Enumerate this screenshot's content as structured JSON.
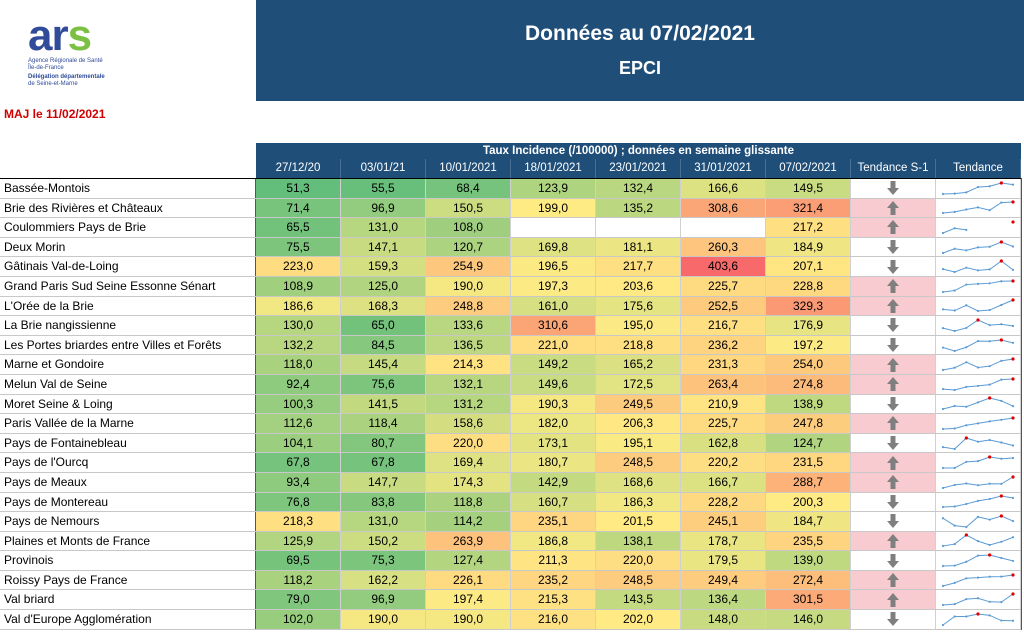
{
  "logo": {
    "brand_a": "ar",
    "brand_b": "s",
    "line1": "Agence Régionale de Santé",
    "line2": "Île-de-France",
    "line3": "Délégation départementale",
    "line4": "de Seine-et-Marne"
  },
  "maj": "MAJ le 11/02/2021",
  "banner": {
    "title": "Données au 07/02/2021",
    "subtitle": "EPCI"
  },
  "table": {
    "group_header": "Taux Incidence (/100000) ; données en semaine glissante",
    "columns": [
      "27/12/20",
      "03/01/21",
      "10/01/2021",
      "18/01/2021",
      "23/01/2021",
      "31/01/2021",
      "07/02/2021",
      "Tendance S-1",
      "Tendance"
    ],
    "rows": [
      {
        "name": "Bassée-Montois",
        "values": [
          "51,3",
          "55,5",
          "68,4",
          "123,9",
          "132,4",
          "166,6",
          "149,5"
        ],
        "trend": "down"
      },
      {
        "name": "Brie des Rivières et Châteaux",
        "values": [
          "71,4",
          "96,9",
          "150,5",
          "199,0",
          "135,2",
          "308,6",
          "321,4"
        ],
        "trend": "up"
      },
      {
        "name": "Coulommiers Pays de Brie",
        "values": [
          "65,5",
          "131,0",
          "108,0",
          "",
          "",
          "",
          "217,2"
        ],
        "trend": "up"
      },
      {
        "name": "Deux Morin",
        "values": [
          "75,5",
          "147,1",
          "120,7",
          "169,8",
          "181,1",
          "260,3",
          "184,9"
        ],
        "trend": "down"
      },
      {
        "name": "Gâtinais Val-de-Loing",
        "values": [
          "223,0",
          "159,3",
          "254,9",
          "196,5",
          "217,7",
          "403,6",
          "207,1"
        ],
        "trend": "down"
      },
      {
        "name": "Grand Paris Sud Seine Essonne Sénart",
        "values": [
          "108,9",
          "125,0",
          "190,0",
          "197,3",
          "203,6",
          "225,7",
          "228,8"
        ],
        "trend": "up"
      },
      {
        "name": "L'Orée de la Brie",
        "values": [
          "186,6",
          "168,3",
          "248,8",
          "161,0",
          "175,6",
          "252,5",
          "329,3"
        ],
        "trend": "up"
      },
      {
        "name": "La Brie nangissienne",
        "values": [
          "130,0",
          "65,0",
          "133,6",
          "310,6",
          "195,0",
          "216,7",
          "176,9"
        ],
        "trend": "down"
      },
      {
        "name": "Les Portes briardes entre Villes et Forêts",
        "values": [
          "132,2",
          "84,5",
          "136,5",
          "221,0",
          "218,8",
          "236,2",
          "197,2"
        ],
        "trend": "down"
      },
      {
        "name": "Marne et Gondoire",
        "values": [
          "118,0",
          "145,4",
          "214,3",
          "149,2",
          "165,2",
          "231,3",
          "254,0"
        ],
        "trend": "up"
      },
      {
        "name": "Melun Val de Seine",
        "values": [
          "92,4",
          "75,6",
          "132,1",
          "149,6",
          "172,5",
          "263,4",
          "274,8"
        ],
        "trend": "up"
      },
      {
        "name": "Moret Seine & Loing",
        "values": [
          "100,3",
          "141,5",
          "131,2",
          "190,3",
          "249,5",
          "210,9",
          "138,9"
        ],
        "trend": "down"
      },
      {
        "name": "Paris Vallée de la Marne",
        "values": [
          "112,6",
          "118,4",
          "158,6",
          "182,0",
          "206,3",
          "225,7",
          "247,8"
        ],
        "trend": "up"
      },
      {
        "name": "Pays de Fontainebleau",
        "values": [
          "104,1",
          "80,7",
          "220,0",
          "173,1",
          "195,1",
          "162,8",
          "124,7"
        ],
        "trend": "down"
      },
      {
        "name": "Pays de l'Ourcq",
        "values": [
          "67,8",
          "67,8",
          "169,4",
          "180,7",
          "248,5",
          "220,2",
          "231,5"
        ],
        "trend": "up"
      },
      {
        "name": "Pays de Meaux",
        "values": [
          "93,4",
          "147,7",
          "174,3",
          "142,9",
          "168,6",
          "166,7",
          "288,7"
        ],
        "trend": "up"
      },
      {
        "name": "Pays de Montereau",
        "values": [
          "76,8",
          "83,8",
          "118,8",
          "160,7",
          "186,3",
          "228,2",
          "200,3"
        ],
        "trend": "down"
      },
      {
        "name": "Pays de Nemours",
        "values": [
          "218,3",
          "131,0",
          "114,2",
          "235,1",
          "201,5",
          "245,1",
          "184,7"
        ],
        "trend": "down"
      },
      {
        "name": "Plaines et Monts de France",
        "values": [
          "125,9",
          "150,2",
          "263,9",
          "186,8",
          "138,1",
          "178,7",
          "235,5"
        ],
        "trend": "up"
      },
      {
        "name": "Provinois",
        "values": [
          "69,5",
          "75,3",
          "127,4",
          "211,3",
          "220,0",
          "179,5",
          "139,0"
        ],
        "trend": "down"
      },
      {
        "name": "Roissy Pays de France",
        "values": [
          "118,2",
          "162,2",
          "226,1",
          "235,2",
          "248,5",
          "249,4",
          "272,4"
        ],
        "trend": "up"
      },
      {
        "name": "Val briard",
        "values": [
          "79,0",
          "96,9",
          "197,4",
          "215,3",
          "143,5",
          "136,4",
          "301,5"
        ],
        "trend": "up"
      },
      {
        "name": "Val d'Europe Agglomération",
        "values": [
          "102,0",
          "190,0",
          "190,0",
          "216,0",
          "202,0",
          "148,0",
          "146,0"
        ],
        "trend": "down"
      }
    ]
  },
  "colors": {
    "header": "#1f4e79",
    "up_bg": "#f8cbd0",
    "down_bg": "#ffffff",
    "arrow": "#7f7f7f",
    "spark": "#5b9bd5",
    "spark_max": "#e00000"
  }
}
